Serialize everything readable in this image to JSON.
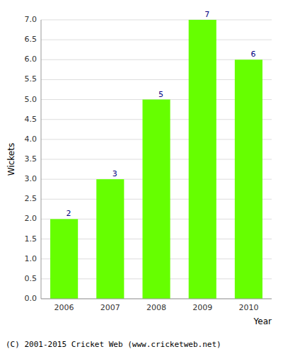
{
  "chart_data": {
    "type": "bar",
    "categories": [
      "2006",
      "2007",
      "2008",
      "2009",
      "2010"
    ],
    "values": [
      2,
      3,
      5,
      7,
      6
    ],
    "color": "#66ff00",
    "xlabel": "Year",
    "ylabel": "Wickets",
    "ylim": [
      0,
      7.0
    ],
    "yticks": [
      {
        "value": 0.0,
        "label": "0.0"
      },
      0.5,
      {
        "value": 1.0,
        "label": "1.0"
      },
      1.5,
      {
        "value": 2.0,
        "label": "2.0"
      },
      2.5,
      {
        "value": 3.0,
        "label": "3.0"
      },
      3.5,
      {
        "value": 4.0,
        "label": "4.0"
      },
      4.5,
      {
        "value": 5.0,
        "label": "5.0"
      },
      5.5,
      {
        "value": 6.0,
        "label": "6.0"
      },
      6.5,
      {
        "value": 7.0,
        "label": "7.0"
      }
    ],
    "grid": true,
    "data_labels": true,
    "annotations": [
      "(C) 2001-2015 Cricket Web (www.cricketweb.net)"
    ]
  }
}
